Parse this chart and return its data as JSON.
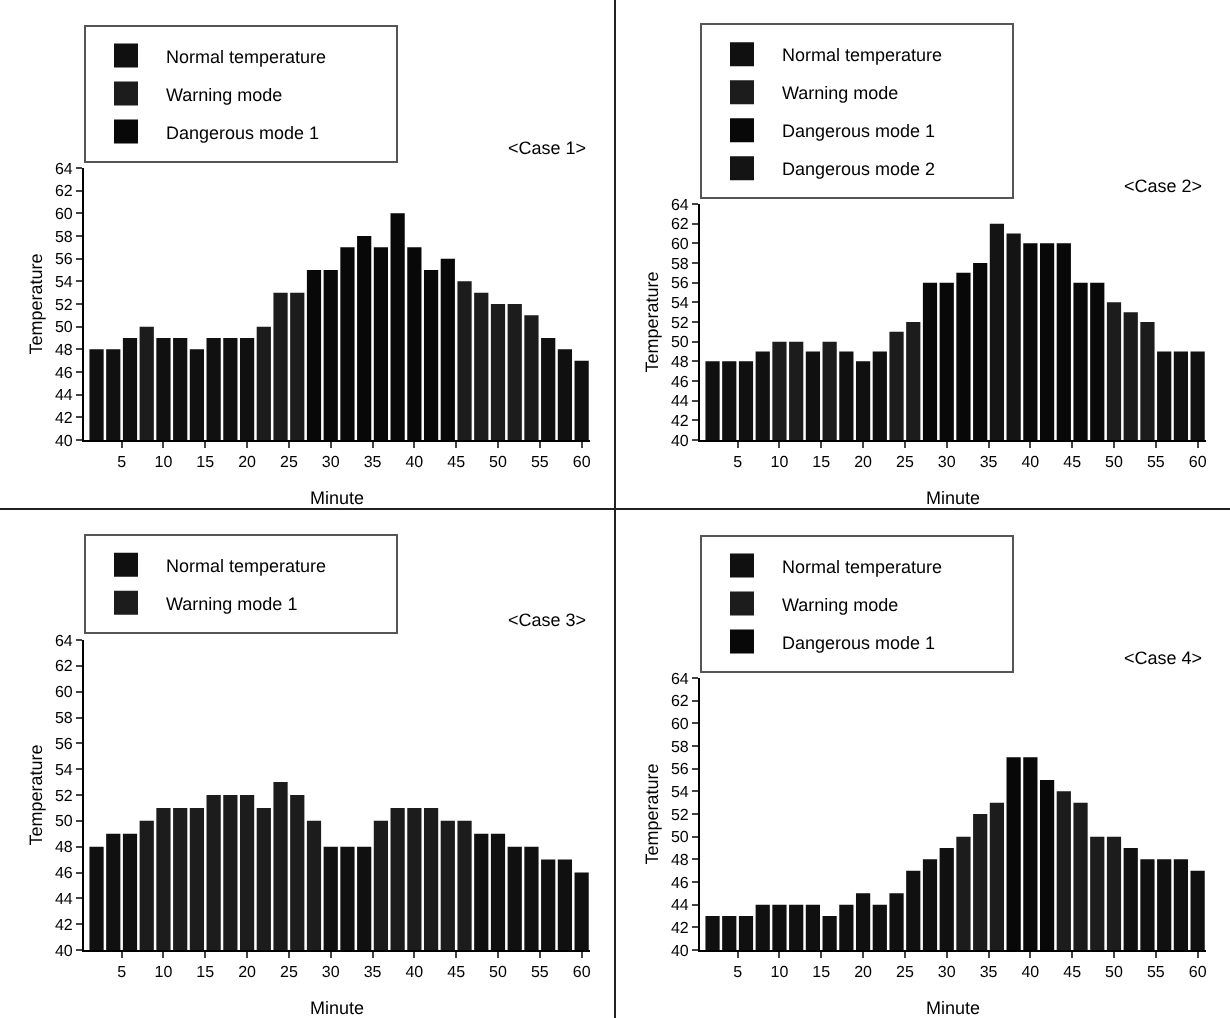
{
  "chart_data": [
    {
      "type": "bar",
      "title": "<Case 1>",
      "xlabel": "Minute",
      "ylabel": "Temperature",
      "legend": "top",
      "grid": false,
      "x": [
        2,
        4,
        6,
        8,
        10,
        12,
        14,
        16,
        18,
        20,
        22,
        24,
        26,
        28,
        30,
        32,
        34,
        36,
        38,
        40,
        42,
        44,
        46,
        48,
        50,
        52,
        54,
        56,
        58,
        60
      ],
      "xlim": [
        0.5,
        61
      ],
      "xticks": [
        5,
        10,
        15,
        20,
        25,
        30,
        35,
        40,
        45,
        50,
        55,
        60
      ],
      "ylim": [
        40,
        64
      ],
      "yticks": [
        40,
        42,
        44,
        46,
        48,
        50,
        52,
        54,
        56,
        58,
        60,
        62,
        64
      ],
      "series": [
        {
          "name": "Normal temperature",
          "color": "#101010",
          "values": [
            48,
            48,
            49,
            null,
            49,
            49,
            48,
            49,
            49,
            49,
            null,
            null,
            null,
            null,
            null,
            null,
            null,
            null,
            null,
            null,
            null,
            null,
            null,
            null,
            null,
            null,
            null,
            49,
            48,
            47
          ]
        },
        {
          "name": "Warning mode",
          "color": "#1c1c1c",
          "values": [
            null,
            null,
            null,
            50,
            null,
            null,
            null,
            null,
            null,
            null,
            50,
            53,
            53,
            null,
            null,
            null,
            null,
            null,
            null,
            null,
            null,
            null,
            54,
            53,
            52,
            52,
            51,
            null,
            null,
            null
          ]
        },
        {
          "name": "Dangerous mode 1",
          "color": "#080808",
          "values": [
            null,
            null,
            null,
            null,
            null,
            null,
            null,
            null,
            null,
            null,
            null,
            null,
            null,
            55,
            55,
            57,
            58,
            57,
            60,
            57,
            55,
            56,
            null,
            null,
            null,
            null,
            null,
            null,
            null,
            null
          ]
        }
      ]
    },
    {
      "type": "bar",
      "title": "<Case 2>",
      "xlabel": "Minute",
      "ylabel": "Temperature",
      "legend": "top",
      "grid": false,
      "x": [
        2,
        4,
        6,
        8,
        10,
        12,
        14,
        16,
        18,
        20,
        22,
        24,
        26,
        28,
        30,
        32,
        34,
        36,
        38,
        40,
        42,
        44,
        46,
        48,
        50,
        52,
        54,
        56,
        58,
        60
      ],
      "xlim": [
        0.5,
        61
      ],
      "xticks": [
        5,
        10,
        15,
        20,
        25,
        30,
        35,
        40,
        45,
        50,
        55,
        60
      ],
      "ylim": [
        40,
        64
      ],
      "yticks": [
        40,
        42,
        44,
        46,
        48,
        50,
        52,
        54,
        56,
        58,
        60,
        62,
        64
      ],
      "series": [
        {
          "name": "Normal temperature",
          "color": "#101010",
          "values": [
            48,
            48,
            48,
            49,
            null,
            null,
            49,
            null,
            49,
            48,
            49,
            null,
            null,
            null,
            null,
            null,
            null,
            null,
            null,
            null,
            null,
            null,
            null,
            null,
            null,
            null,
            null,
            49,
            49,
            49
          ]
        },
        {
          "name": "Warning mode",
          "color": "#1c1c1c",
          "values": [
            null,
            null,
            null,
            null,
            50,
            50,
            null,
            50,
            null,
            null,
            null,
            51,
            52,
            null,
            null,
            null,
            null,
            null,
            null,
            null,
            null,
            null,
            null,
            null,
            54,
            53,
            52,
            null,
            null,
            null
          ]
        },
        {
          "name": "Dangerous mode 1",
          "color": "#080808",
          "values": [
            null,
            null,
            null,
            null,
            null,
            null,
            null,
            null,
            null,
            null,
            null,
            null,
            null,
            56,
            56,
            57,
            58,
            null,
            null,
            60,
            60,
            60,
            56,
            56,
            null,
            null,
            null,
            null,
            null,
            null
          ]
        },
        {
          "name": "Dangerous mode 2",
          "color": "#141414",
          "values": [
            null,
            null,
            null,
            null,
            null,
            null,
            null,
            null,
            null,
            null,
            null,
            null,
            null,
            null,
            null,
            null,
            null,
            62,
            61,
            null,
            null,
            null,
            null,
            null,
            null,
            null,
            null,
            null,
            null,
            null
          ]
        }
      ]
    },
    {
      "type": "bar",
      "title": "<Case 3>",
      "xlabel": "Minute",
      "ylabel": "Temperature",
      "legend": "top",
      "grid": false,
      "x": [
        2,
        4,
        6,
        8,
        10,
        12,
        14,
        16,
        18,
        20,
        22,
        24,
        26,
        28,
        30,
        32,
        34,
        36,
        38,
        40,
        42,
        44,
        46,
        48,
        50,
        52,
        54,
        56,
        58,
        60
      ],
      "xlim": [
        0.5,
        61
      ],
      "xticks": [
        5,
        10,
        15,
        20,
        25,
        30,
        35,
        40,
        45,
        50,
        55,
        60
      ],
      "ylim": [
        40,
        64
      ],
      "yticks": [
        40,
        42,
        44,
        46,
        48,
        50,
        52,
        54,
        56,
        58,
        60,
        62,
        64
      ],
      "series": [
        {
          "name": "Normal temperature",
          "color": "#101010",
          "values": [
            48,
            49,
            49,
            null,
            null,
            null,
            null,
            null,
            null,
            null,
            null,
            null,
            null,
            null,
            48,
            48,
            48,
            null,
            null,
            null,
            null,
            null,
            null,
            49,
            49,
            48,
            48,
            47,
            47,
            46
          ]
        },
        {
          "name": "Warning mode 1",
          "color": "#1c1c1c",
          "values": [
            null,
            null,
            null,
            50,
            51,
            51,
            51,
            52,
            52,
            52,
            51,
            53,
            52,
            50,
            null,
            null,
            null,
            50,
            51,
            51,
            51,
            50,
            50,
            null,
            null,
            null,
            null,
            null,
            null,
            null
          ]
        }
      ]
    },
    {
      "type": "bar",
      "title": "<Case 4>",
      "xlabel": "Minute",
      "ylabel": "Temperature",
      "legend": "top",
      "grid": false,
      "x": [
        2,
        4,
        6,
        8,
        10,
        12,
        14,
        16,
        18,
        20,
        22,
        24,
        26,
        28,
        30,
        32,
        34,
        36,
        38,
        40,
        42,
        44,
        46,
        48,
        50,
        52,
        54,
        56,
        58,
        60
      ],
      "xlim": [
        0.5,
        61
      ],
      "xticks": [
        5,
        10,
        15,
        20,
        25,
        30,
        35,
        40,
        45,
        50,
        55,
        60
      ],
      "ylim": [
        40,
        64
      ],
      "yticks": [
        40,
        42,
        44,
        46,
        48,
        50,
        52,
        54,
        56,
        58,
        60,
        62,
        64
      ],
      "series": [
        {
          "name": "Normal temperature",
          "color": "#101010",
          "values": [
            43,
            43,
            43,
            44,
            44,
            44,
            44,
            43,
            44,
            45,
            44,
            45,
            47,
            48,
            49,
            null,
            null,
            null,
            null,
            null,
            null,
            null,
            null,
            null,
            null,
            49,
            48,
            48,
            48,
            47
          ]
        },
        {
          "name": "Warning mode",
          "color": "#1c1c1c",
          "values": [
            null,
            null,
            null,
            null,
            null,
            null,
            null,
            null,
            null,
            null,
            null,
            null,
            null,
            null,
            null,
            50,
            52,
            53,
            null,
            null,
            null,
            54,
            53,
            50,
            50,
            null,
            null,
            null,
            null,
            null
          ]
        },
        {
          "name": "Dangerous mode 1",
          "color": "#080808",
          "values": [
            null,
            null,
            null,
            null,
            null,
            null,
            null,
            null,
            null,
            null,
            null,
            null,
            null,
            null,
            null,
            null,
            null,
            null,
            57,
            57,
            55,
            null,
            null,
            null,
            null,
            null,
            null,
            null,
            null,
            null
          ]
        }
      ]
    }
  ]
}
